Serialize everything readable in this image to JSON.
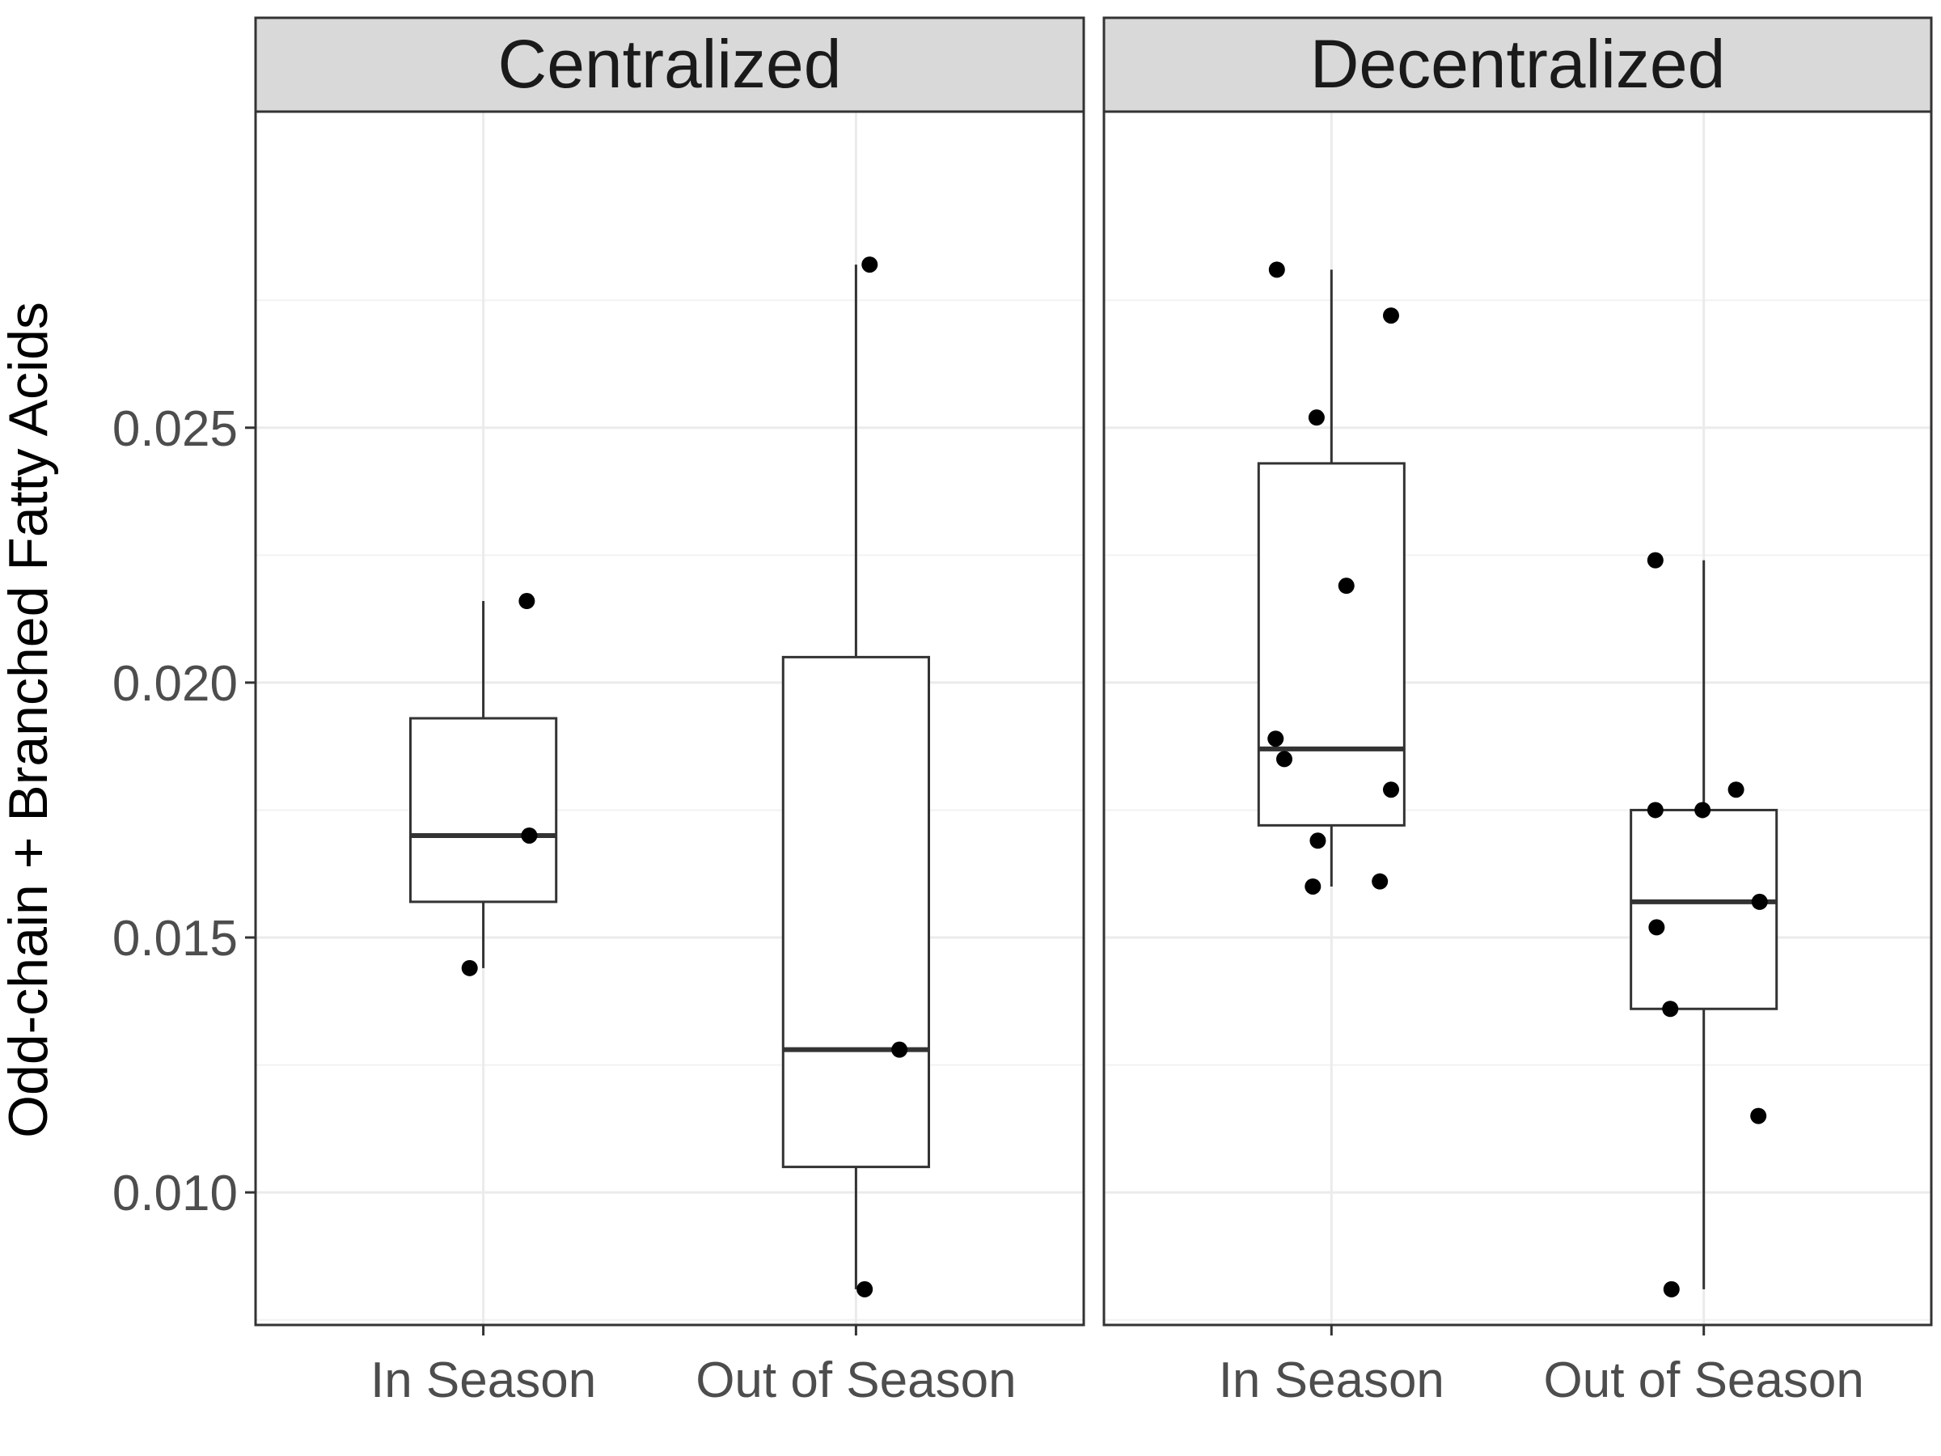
{
  "chart_data": {
    "type": "box",
    "ylabel": "Odd-chain + Branched Fatty Acids",
    "xlabel": "",
    "ylim": [
      0.0074,
      0.0312
    ],
    "yticks": [
      0.01,
      0.015,
      0.02,
      0.025
    ],
    "ytick_labels": [
      "0.010",
      "0.015",
      "0.020",
      "0.025"
    ],
    "categories": [
      "In Season",
      "Out of Season"
    ],
    "grid": true,
    "panels": [
      {
        "name": "Centralized",
        "groups": [
          {
            "category": "In Season",
            "box": {
              "q1": 0.0157,
              "median": 0.017,
              "q3": 0.0193,
              "whisker_low": 0.0144,
              "whisker_high": 0.0216
            },
            "points": [
              0.0216,
              0.017,
              0.0144
            ],
            "jitter": [
              0.35,
              0.37,
              -0.11
            ]
          },
          {
            "category": "Out of Season",
            "box": {
              "q1": 0.0105,
              "median": 0.0128,
              "q3": 0.0205,
              "whisker_low": 0.0081,
              "whisker_high": 0.0282
            },
            "points": [
              0.0282,
              0.0128,
              0.0081
            ],
            "jitter": [
              0.11,
              0.35,
              0.07
            ]
          }
        ]
      },
      {
        "name": "Decentralized",
        "groups": [
          {
            "category": "In Season",
            "box": {
              "q1": 0.0172,
              "median": 0.0187,
              "q3": 0.0243,
              "whisker_low": 0.016,
              "whisker_high": 0.0281
            },
            "points": [
              0.0281,
              0.0272,
              0.0252,
              0.0219,
              0.0189,
              0.0185,
              0.0179,
              0.0169,
              0.0161,
              0.016
            ],
            "jitter": [
              -0.44,
              0.48,
              -0.12,
              0.12,
              -0.45,
              -0.38,
              0.48,
              -0.11,
              0.39,
              -0.15
            ]
          },
          {
            "category": "Out of Season",
            "box": {
              "q1": 0.0136,
              "median": 0.0157,
              "q3": 0.0175,
              "whisker_low": 0.0081,
              "whisker_high": 0.0224
            },
            "points": [
              0.0224,
              0.0179,
              0.0175,
              0.0175,
              0.0157,
              0.0152,
              0.0136,
              0.0115,
              0.0081
            ],
            "jitter": [
              -0.39,
              0.26,
              -0.39,
              -0.01,
              0.45,
              -0.38,
              -0.27,
              0.44,
              -0.26
            ]
          }
        ]
      }
    ]
  }
}
